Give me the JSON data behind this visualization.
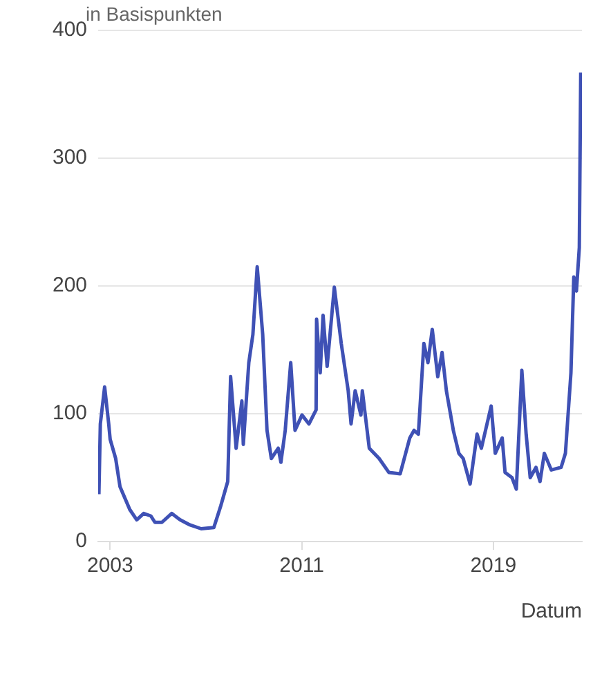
{
  "chart_data": {
    "type": "line",
    "subtitle": "in Basispunkten",
    "xlabel": "Datum",
    "x": [
      2002.53,
      2002.59,
      2002.77,
      2002.94,
      2003.0,
      2003.23,
      2003.41,
      2003.82,
      2004.11,
      2004.4,
      2004.7,
      2004.87,
      2005.16,
      2005.57,
      2005.92,
      2006.33,
      2006.8,
      2007.33,
      2007.62,
      2007.91,
      2008.03,
      2008.26,
      2008.5,
      2008.56,
      2008.79,
      2008.96,
      2009.14,
      2009.37,
      2009.55,
      2009.73,
      2010.02,
      2010.13,
      2010.31,
      2010.54,
      2010.72,
      2011.01,
      2011.3,
      2011.6,
      2011.62,
      2011.77,
      2011.89,
      2012.06,
      2012.36,
      2012.65,
      2012.94,
      2013.06,
      2013.23,
      2013.47,
      2013.53,
      2013.82,
      2014.23,
      2014.64,
      2015.11,
      2015.51,
      2015.69,
      2015.87,
      2016.1,
      2016.27,
      2016.45,
      2016.68,
      2016.86,
      2017.04,
      2017.33,
      2017.56,
      2017.74,
      2018.03,
      2018.32,
      2018.5,
      2018.91,
      2019.08,
      2019.37,
      2019.49,
      2019.78,
      2019.96,
      2020.19,
      2020.37,
      2020.54,
      2020.78,
      2020.95,
      2021.13,
      2021.42,
      2021.83,
      2022.01,
      2022.24,
      2022.36,
      2022.47,
      2022.59,
      2022.65
    ],
    "series": [
      {
        "color": "#3f51b5",
        "values": [
          37,
          92,
          121,
          92,
          80,
          65,
          43,
          25,
          17,
          22,
          20,
          15,
          15,
          22,
          17,
          13,
          10,
          11,
          28,
          47,
          129,
          73,
          110,
          76,
          140,
          162,
          215,
          162,
          87,
          65,
          73,
          62,
          87,
          140,
          87,
          99,
          92,
          103,
          174,
          132,
          177,
          137,
          199,
          155,
          118,
          92,
          118,
          99,
          118,
          73,
          65,
          54,
          53,
          81,
          87,
          84,
          155,
          140,
          166,
          129,
          148,
          118,
          87,
          69,
          65,
          45,
          84,
          73,
          106,
          69,
          81,
          54,
          50,
          41,
          134,
          84,
          50,
          58,
          47,
          69,
          56,
          58,
          69,
          132,
          207,
          196,
          230,
          367
        ]
      }
    ],
    "xlim": [
      2002.5,
      2022.7
    ],
    "xticks": [
      2003,
      2011,
      2019
    ],
    "ylim": [
      0,
      400
    ],
    "yticks": [
      0,
      100,
      200,
      300,
      400
    ],
    "grid": "y",
    "legend": false,
    "marker": "none",
    "line_style": "solid"
  }
}
